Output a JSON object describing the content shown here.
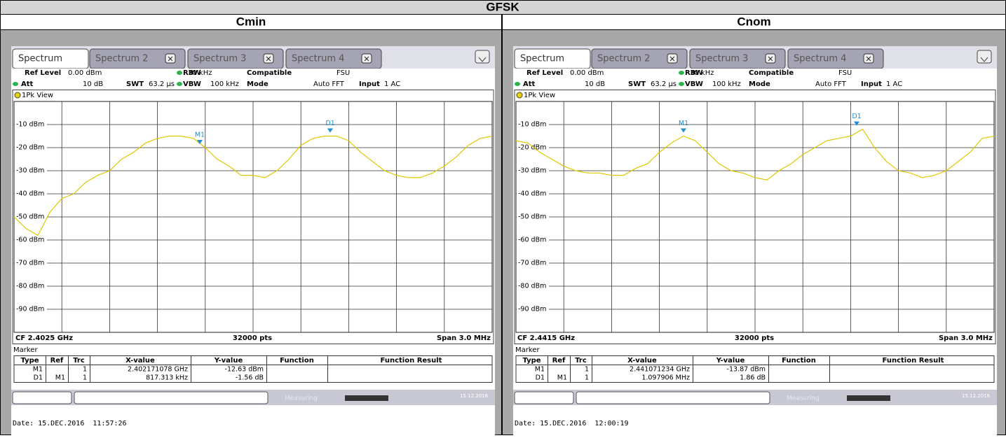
{
  "header": {
    "title": "GFSK"
  },
  "panels": [
    {
      "label": "Cmin",
      "tabs": [
        "Spectrum",
        "Spectrum 2",
        "Spectrum 3",
        "Spectrum 4"
      ],
      "settings": [
        {
          "label": "Ref Level",
          "value": "0.00 dBm"
        },
        {
          "label": "RBW",
          "value": "30 kHz"
        },
        {
          "label": "Compatible",
          "value": "FSU"
        },
        {
          "label": "Att",
          "value": "10 dB"
        },
        {
          "label": "SWT",
          "value": "63.2 µs"
        },
        {
          "label": "VBW",
          "value": "100 kHz"
        },
        {
          "label": "Mode",
          "value": "Auto FFT"
        },
        {
          "label": "Input",
          "value": "1 AC"
        }
      ],
      "view": "1Pk View",
      "ylim": [
        -100,
        0
      ],
      "yticks": [
        {
          "value": -10,
          "label": "-10 dBm"
        },
        {
          "value": -20,
          "label": "-20 dBm"
        },
        {
          "value": -30,
          "label": "-30 dBm"
        },
        {
          "value": -40,
          "label": "-40 dBm"
        },
        {
          "value": -50,
          "label": "-50 dBm"
        },
        {
          "value": -60,
          "label": "-60 dBm"
        },
        {
          "value": -70,
          "label": "-70 dBm"
        },
        {
          "value": -80,
          "label": "-80 dBm"
        },
        {
          "value": -90,
          "label": "-90 dBm"
        }
      ],
      "trace": [
        -50,
        -55,
        -58,
        -48,
        -42,
        -40,
        -35,
        -32,
        -30,
        -25,
        -22,
        -18,
        -16,
        -15,
        -15,
        -16,
        -20,
        -25,
        -28,
        -32,
        -32,
        -33,
        -30,
        -25,
        -19,
        -16,
        -15,
        -15,
        -17,
        -22,
        -26,
        -30,
        -32,
        -33,
        -33,
        -31,
        -28,
        -24,
        -19,
        -16,
        -15
      ],
      "footer": {
        "center": "CF 2.4025 GHz",
        "points": "32000 pts",
        "span": "Span 3.0 MHz"
      },
      "marker_table": {
        "title": "Marker",
        "columns": [
          "Type",
          "Ref",
          "Trc",
          "X-value",
          "Y-value",
          "Function",
          "Function Result"
        ],
        "rows": [
          {
            "type": "M1",
            "trc": "1",
            "x": "2.402171078 GHz",
            "y": "-12.63 dBm"
          },
          {
            "type": "D1",
            "ref": "M1",
            "trc": "1",
            "x": "817.313 kHz",
            "y": "-1.56 dB"
          }
        ]
      },
      "status": "Measuring",
      "status_date": "15.12.2016",
      "date": "Date: 15.DEC.2016  11:57:26"
    },
    {
      "label": "Cnom",
      "tabs": [
        "Spectrum",
        "Spectrum 2",
        "Spectrum 3",
        "Spectrum 4"
      ],
      "settings": [
        {
          "label": "Ref Level",
          "value": "0.00 dBm"
        },
        {
          "label": "RBW",
          "value": "30 kHz"
        },
        {
          "label": "Compatible",
          "value": "FSU"
        },
        {
          "label": "Att",
          "value": "10 dB"
        },
        {
          "label": "SWT",
          "value": "63.2 µs"
        },
        {
          "label": "VBW",
          "value": "100 kHz"
        },
        {
          "label": "Mode",
          "value": "Auto FFT"
        },
        {
          "label": "Input",
          "value": "1 AC"
        }
      ],
      "view": "1Pk View",
      "ylim": [
        -100,
        0
      ],
      "yticks": [
        {
          "value": -10,
          "label": "-10 dBm"
        },
        {
          "value": -20,
          "label": "-20 dBm"
        },
        {
          "value": -30,
          "label": "-30 dBm"
        },
        {
          "value": -40,
          "label": "-40 dBm"
        },
        {
          "value": -50,
          "label": "-50 dBm"
        },
        {
          "value": -60,
          "label": "-60 dBm"
        },
        {
          "value": -70,
          "label": "-70 dBm"
        },
        {
          "value": -80,
          "label": "-80 dBm"
        },
        {
          "value": -90,
          "label": "-90 dBm"
        }
      ],
      "trace": [
        -17,
        -18,
        -22,
        -25,
        -28,
        -30,
        -31,
        -31,
        -32,
        -32,
        -29,
        -27,
        -22,
        -18,
        -15,
        -17,
        -22,
        -27,
        -30,
        -31,
        -33,
        -34,
        -30,
        -27,
        -23,
        -20,
        -17,
        -16,
        -15,
        -12,
        -20,
        -26,
        -30,
        -31,
        -33,
        -32,
        -30,
        -26,
        -22,
        -16,
        -15
      ],
      "footer": {
        "center": "CF 2.4415 GHz",
        "points": "32000 pts",
        "span": "Span 3.0 MHz"
      },
      "marker_table": {
        "title": "Marker",
        "columns": [
          "Type",
          "Ref",
          "Trc",
          "X-value",
          "Y-value",
          "Function",
          "Function Result"
        ],
        "rows": [
          {
            "type": "M1",
            "trc": "1",
            "x": "2.441071234 GHz",
            "y": "-13.87 dBm"
          },
          {
            "type": "D1",
            "ref": "M1",
            "trc": "1",
            "x": "1.097906 MHz",
            "y": "1.86 dB"
          }
        ]
      },
      "status": "Measuring",
      "status_date": "15.12.2016",
      "date": "Date: 15.DEC.2016  12:00:19"
    }
  ]
}
